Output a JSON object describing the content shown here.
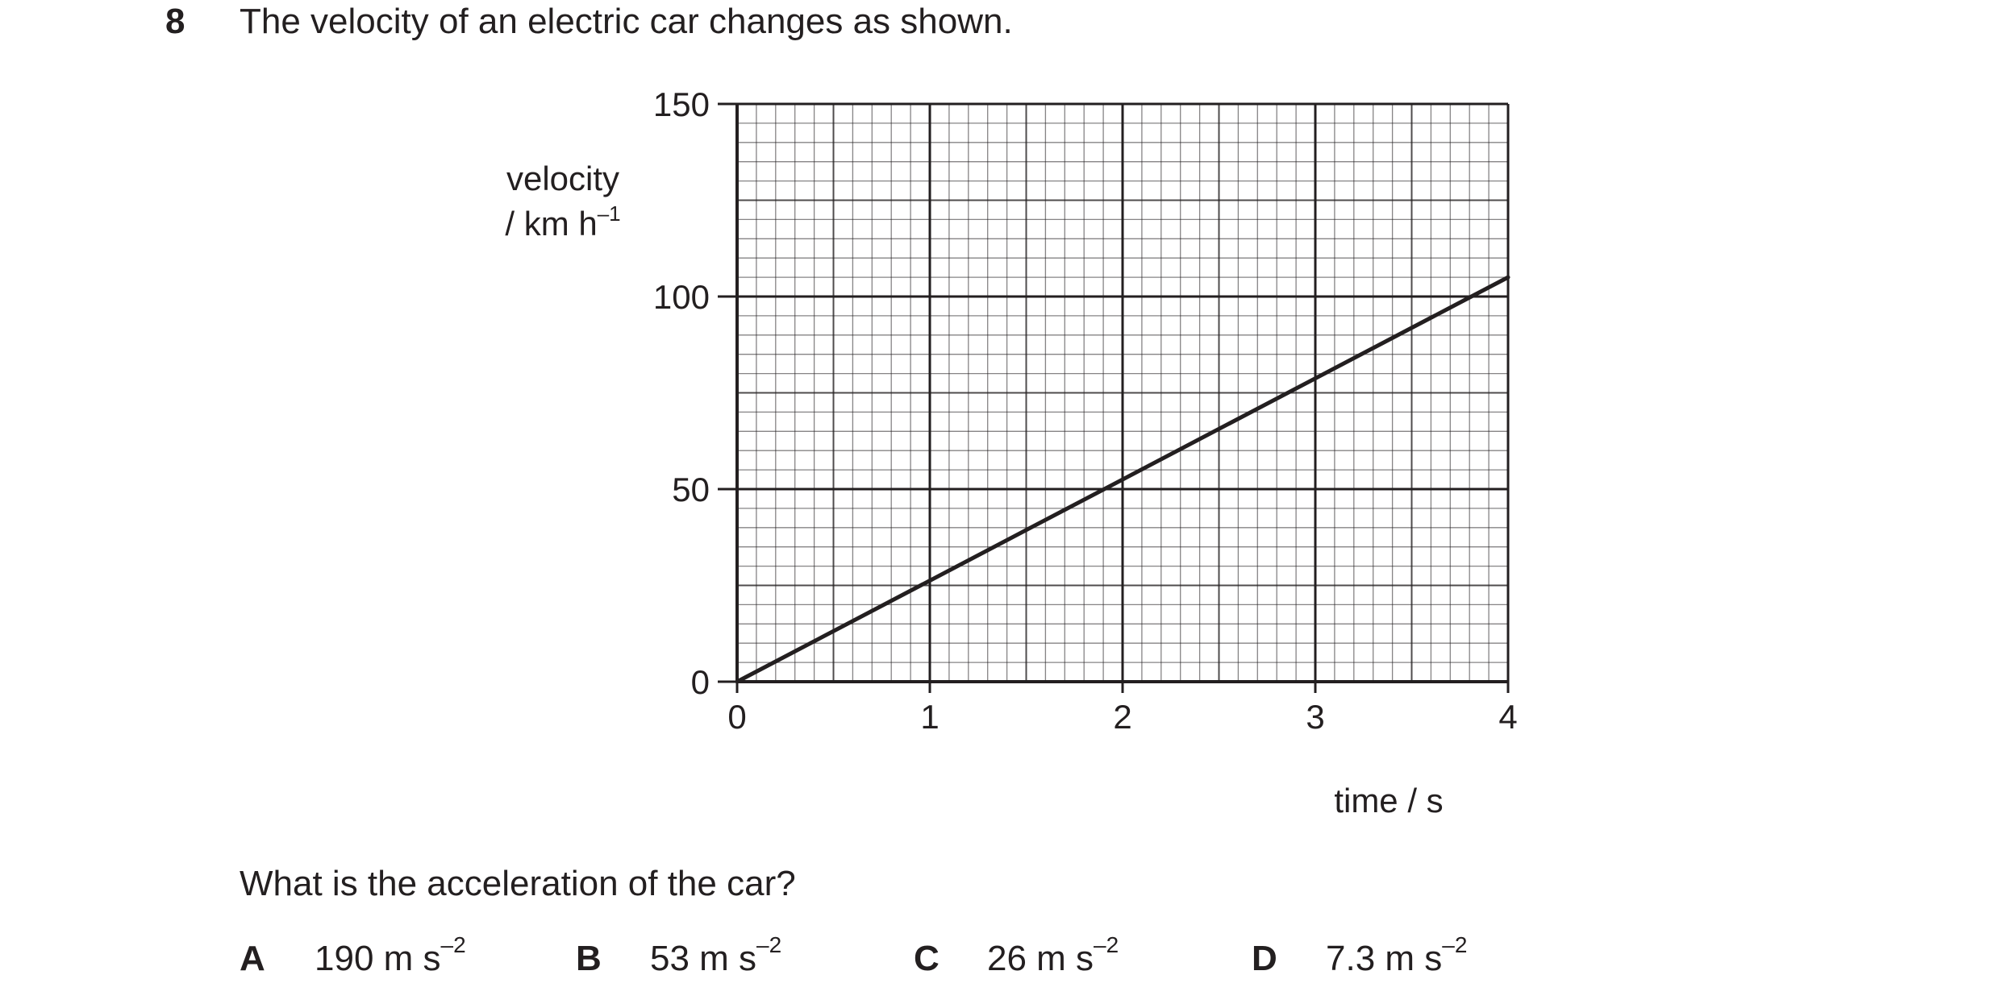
{
  "question": {
    "number": "8",
    "stem": "The velocity of an electric car changes as shown.",
    "prompt": "What is the acceleration of the car?"
  },
  "options": [
    {
      "letter": "A",
      "value": "190 m s",
      "exponent": "–2"
    },
    {
      "letter": "B",
      "value": "53 m s",
      "exponent": "–2"
    },
    {
      "letter": "C",
      "value": "26 m s",
      "exponent": "–2"
    },
    {
      "letter": "D",
      "value": "7.3 m s",
      "exponent": "–2"
    }
  ],
  "chart_data": {
    "type": "line",
    "ylabel_line1": "velocity",
    "ylabel_line2": "/ km h",
    "ylabel_exponent": "–1",
    "xlabel": "time / s",
    "xlim": [
      0,
      4
    ],
    "ylim": [
      0,
      150
    ],
    "x_ticks": [
      0,
      1,
      2,
      3,
      4
    ],
    "y_ticks": [
      0,
      50,
      100,
      150
    ],
    "grid": true,
    "minor_x_step": 0.1,
    "minor_y_step": 5,
    "series": [
      {
        "x": [
          0,
          4
        ],
        "y": [
          0,
          105
        ]
      }
    ],
    "colors": {
      "ink": "#231f20"
    }
  }
}
